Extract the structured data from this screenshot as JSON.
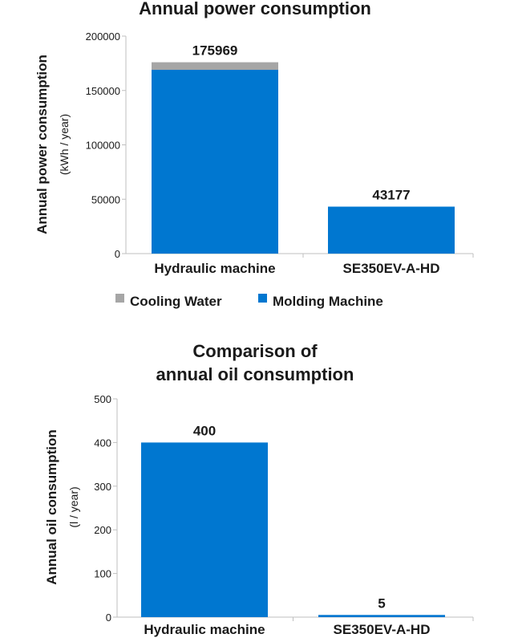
{
  "chart_data": [
    {
      "type": "bar",
      "stacked": true,
      "title": "Annual power consumption",
      "ylabel": "Annual power consumption",
      "yunit": "(kWh / year)",
      "ylim": [
        0,
        200000
      ],
      "yticks": [
        "0",
        "50000",
        "100000",
        "150000",
        "200000"
      ],
      "categories": [
        "Hydraulic machine",
        "SE350EV-A-HD"
      ],
      "series": [
        {
          "name": "Molding Machine",
          "color": "#0077d0",
          "values": [
            169000,
            43177
          ]
        },
        {
          "name": "Cooling Water",
          "color": "#a6a6a6",
          "values": [
            6969,
            0
          ]
        }
      ],
      "totals": [
        "175969",
        "43177"
      ],
      "legend": [
        "Cooling Water",
        "Molding Machine"
      ],
      "legend_position": "bottom"
    },
    {
      "type": "bar",
      "title_lines": [
        "Comparison of",
        "annual oil consumption"
      ],
      "ylabel": "Annual oil consumption",
      "yunit": "(l / year)",
      "ylim": [
        0,
        500
      ],
      "yticks": [
        "0",
        "100",
        "200",
        "300",
        "400",
        "500"
      ],
      "categories": [
        "Hydraulic machine",
        "SE350EV-A-HD"
      ],
      "series": [
        {
          "color": "#0077d0",
          "values": [
            400,
            5
          ]
        }
      ],
      "data_labels": [
        "400",
        "5"
      ]
    }
  ]
}
